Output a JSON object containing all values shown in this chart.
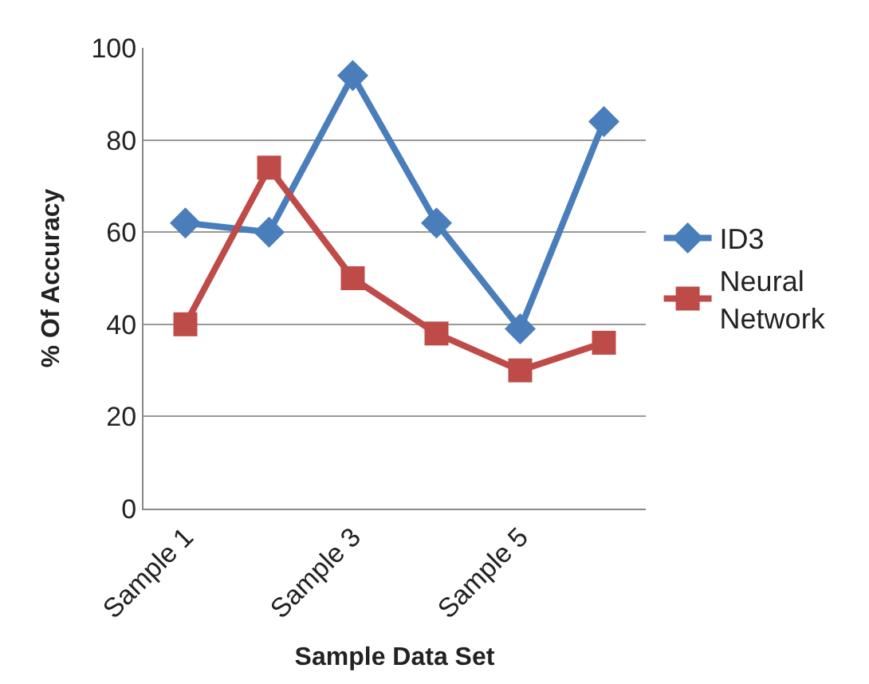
{
  "chart_data": {
    "type": "line",
    "xlabel": "Sample Data Set",
    "ylabel": "% Of Accuracy",
    "categories": [
      "Sample 1",
      null,
      "Sample 3",
      null,
      "Sample 5",
      null
    ],
    "series": [
      {
        "name": "ID3",
        "color": "#4a7ebb",
        "marker": "diamond",
        "values": [
          62,
          60,
          94,
          62,
          39,
          84
        ]
      },
      {
        "name": "Neural\nNetwork",
        "color": "#be4b48",
        "marker": "square",
        "values": [
          40,
          74,
          50,
          38,
          30,
          36
        ]
      }
    ],
    "ylim": [
      0,
      100
    ],
    "yticks": [
      0,
      20,
      40,
      60,
      80,
      100
    ],
    "grid": "y",
    "legend": "right"
  }
}
